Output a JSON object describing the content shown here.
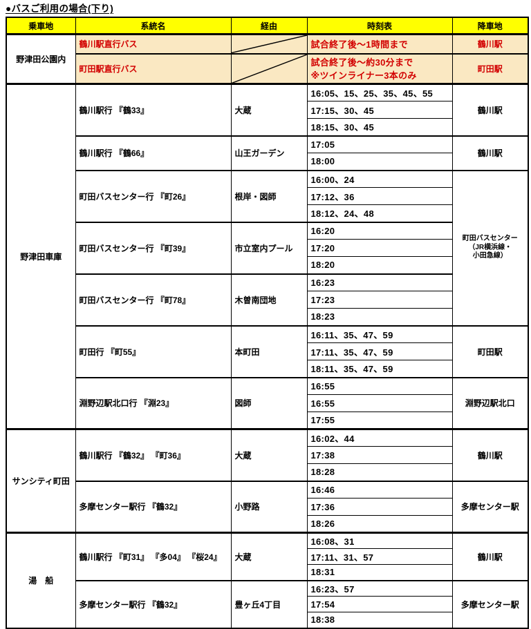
{
  "title": "●バスご利用の場合(下り)",
  "colors": {
    "header_yellow": "#FFFF00",
    "highlight_cream": "#FAE8C2",
    "accent_red": "#D20000",
    "border_black": "#000000"
  },
  "table": {
    "headers": [
      "乗車地",
      "系統名",
      "経由",
      "時刻表",
      "降車地"
    ],
    "sections": [
      {
        "boarding": "野津田公園内",
        "style": "highlight",
        "groups": [
          {
            "route": "鶴川駅直行バス",
            "via_diagonal": true,
            "times": [
              "試合終了後～1時間まで"
            ],
            "destination": "鶴川駅"
          },
          {
            "route": "町田駅直行バス",
            "via_diagonal": true,
            "times": [
              "試合終了後～約30分まで\n※ツインライナー3本のみ"
            ],
            "destination": "町田駅"
          }
        ]
      },
      {
        "boarding": "野津田車庫",
        "groups": [
          {
            "route": "鶴川駅行 『鶴33』",
            "via": "大蔵",
            "times": [
              "16:05、15、25、35、45、55",
              "17:15、30、45",
              "18:15、30、45"
            ],
            "destination": "鶴川駅"
          },
          {
            "route": "鶴川駅行 『鶴66』",
            "via": "山王ガーデン",
            "times": [
              "17:05",
              "18:00"
            ],
            "destination": "鶴川駅"
          },
          {
            "route": "町田バスセンター行 『町26』",
            "via": "根岸・図師",
            "times": [
              "16:00、24",
              "17:12、36",
              "18:12、24、48"
            ],
            "destination": "町田バスセンター\n（JR横浜線・\n小田急線）",
            "destination_spans_groups": 3,
            "destination_small": true
          },
          {
            "route": "町田バスセンター行 『町39』",
            "via": "市立室内プール",
            "times": [
              "16:20",
              "17:20",
              "18:20"
            ]
          },
          {
            "route": "町田バスセンター行 『町78』",
            "via": "木曽南団地",
            "times": [
              "16:23",
              "17:23",
              "18:23"
            ]
          },
          {
            "route": "町田行 『町55』",
            "via": "本町田",
            "times": [
              "16:11、35、47、59",
              "17:11、35、47、59",
              "18:11、35、47、59"
            ],
            "destination": "町田駅"
          },
          {
            "route": "淵野辺駅北口行 『淵23』",
            "via": "図師",
            "times": [
              "16:55",
              "16:55",
              "17:55"
            ],
            "destination": "淵野辺駅北口"
          }
        ]
      },
      {
        "boarding": "サンシティ町田",
        "groups": [
          {
            "route": "鶴川駅行 『鶴32』 『町36』",
            "via": "大蔵",
            "times": [
              "16:02、44",
              "17:38",
              "18:28"
            ],
            "destination": "鶴川駅"
          },
          {
            "route": "多摩センター駅行 『鶴32』",
            "via": "小野路",
            "times": [
              "16:46",
              "17:36",
              "18:26"
            ],
            "destination": "多摩センター駅"
          }
        ]
      },
      {
        "boarding": "湯　船",
        "groups": [
          {
            "route": "鶴川駅行 『町31』 『多04』 『桜24』",
            "via": "大蔵",
            "times": [
              "16:08、31",
              "17:11、31、57",
              "18:31"
            ],
            "destination": "鶴川駅"
          },
          {
            "route": "多摩センター駅行 『鶴32』",
            "via": "豊ヶ丘4丁目",
            "times": [
              "16:23、57",
              "17:54",
              "18:38"
            ],
            "destination": "多摩センター駅"
          }
        ]
      }
    ]
  }
}
